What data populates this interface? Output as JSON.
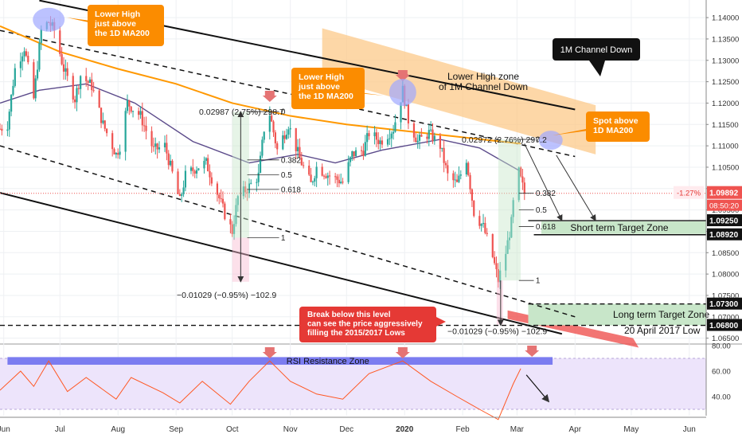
{
  "chart_data": [
    {
      "type": "candlestick",
      "title": "",
      "ylim": [
        1.064,
        1.143
      ],
      "x_tick_labels": [
        "Jun",
        "Jul",
        "Aug",
        "Sep",
        "Oct",
        "Nov",
        "Dec",
        "2020",
        "Feb",
        "Mar",
        "Apr",
        "May",
        "Jun"
      ],
      "y_tick_labels": [
        "1.14000",
        "1.13500",
        "1.13000",
        "1.12500",
        "1.12000",
        "1.11500",
        "1.11000",
        "1.10500",
        "1.10000",
        "1.09500",
        "1.09000",
        "1.08500",
        "1.08000",
        "1.07500",
        "1.07000",
        "1.06500"
      ],
      "y_ticks": [
        1.14,
        1.135,
        1.13,
        1.125,
        1.12,
        1.115,
        1.11,
        1.105,
        1.1,
        1.095,
        1.09,
        1.085,
        1.08,
        1.075,
        1.07,
        1.065
      ],
      "price_path": [
        {
          "x": "2019-05-30",
          "y": 1.114
        },
        {
          "x": "2019-06-03",
          "y": 1.115
        },
        {
          "x": "2019-06-07",
          "y": 1.128
        },
        {
          "x": "2019-06-12",
          "y": 1.133
        },
        {
          "x": "2019-06-17",
          "y": 1.121
        },
        {
          "x": "2019-06-21",
          "y": 1.137
        },
        {
          "x": "2019-06-25",
          "y": 1.139
        },
        {
          "x": "2019-06-28",
          "y": 1.137
        },
        {
          "x": "2019-07-03",
          "y": 1.128
        },
        {
          "x": "2019-07-09",
          "y": 1.121
        },
        {
          "x": "2019-07-12",
          "y": 1.1265
        },
        {
          "x": "2019-07-18",
          "y": 1.124
        },
        {
          "x": "2019-07-24",
          "y": 1.115
        },
        {
          "x": "2019-07-31",
          "y": 1.108
        },
        {
          "x": "2019-08-02",
          "y": 1.11
        },
        {
          "x": "2019-08-06",
          "y": 1.12
        },
        {
          "x": "2019-08-13",
          "y": 1.117
        },
        {
          "x": "2019-08-20",
          "y": 1.109
        },
        {
          "x": "2019-08-26",
          "y": 1.11
        },
        {
          "x": "2019-09-03",
          "y": 1.097
        },
        {
          "x": "2019-09-06",
          "y": 1.103
        },
        {
          "x": "2019-09-12",
          "y": 1.105
        },
        {
          "x": "2019-09-17",
          "y": 1.106
        },
        {
          "x": "2019-09-23",
          "y": 1.099
        },
        {
          "x": "2019-09-27",
          "y": 1.094
        },
        {
          "x": "2019-10-01",
          "y": 1.09
        },
        {
          "x": "2019-10-04",
          "y": 1.098
        },
        {
          "x": "2019-10-09",
          "y": 1.1
        },
        {
          "x": "2019-10-15",
          "y": 1.103
        },
        {
          "x": "2019-10-18",
          "y": 1.114
        },
        {
          "x": "2019-10-21",
          "y": 1.1175
        },
        {
          "x": "2019-10-25",
          "y": 1.109
        },
        {
          "x": "2019-10-31",
          "y": 1.115
        },
        {
          "x": "2019-11-06",
          "y": 1.107
        },
        {
          "x": "2019-11-12",
          "y": 1.101
        },
        {
          "x": "2019-11-15",
          "y": 1.105
        },
        {
          "x": "2019-11-22",
          "y": 1.103
        },
        {
          "x": "2019-11-29",
          "y": 1.1015
        },
        {
          "x": "2019-12-04",
          "y": 1.108
        },
        {
          "x": "2019-12-10",
          "y": 1.109
        },
        {
          "x": "2019-12-13",
          "y": 1.113
        },
        {
          "x": "2019-12-19",
          "y": 1.111
        },
        {
          "x": "2019-12-26",
          "y": 1.114
        },
        {
          "x": "2019-12-31",
          "y": 1.123
        },
        {
          "x": "2020-01-03",
          "y": 1.116
        },
        {
          "x": "2020-01-08",
          "y": 1.111
        },
        {
          "x": "2020-01-14",
          "y": 1.113
        },
        {
          "x": "2020-01-20",
          "y": 1.11
        },
        {
          "x": "2020-01-24",
          "y": 1.103
        },
        {
          "x": "2020-01-29",
          "y": 1.101
        },
        {
          "x": "2020-02-03",
          "y": 1.107
        },
        {
          "x": "2020-02-07",
          "y": 1.0945
        },
        {
          "x": "2020-02-12",
          "y": 1.091
        },
        {
          "x": "2020-02-17",
          "y": 1.084
        },
        {
          "x": "2020-02-20",
          "y": 1.0785
        },
        {
          "x": "2020-02-24",
          "y": 1.085
        },
        {
          "x": "2020-02-27",
          "y": 1.092
        },
        {
          "x": "2020-03-01",
          "y": 1.1055
        },
        {
          "x": "2020-03-03",
          "y": 1.102
        },
        {
          "x": "2020-03-05",
          "y": 1.0989
        }
      ],
      "moving_averages": [
        {
          "name": "1D MA200",
          "color": "#ff9800",
          "points": [
            {
              "x": "2019-05-30",
              "y": 1.138
            },
            {
              "x": "2019-07-01",
              "y": 1.132
            },
            {
              "x": "2019-08-01",
              "y": 1.128
            },
            {
              "x": "2019-09-01",
              "y": 1.1245
            },
            {
              "x": "2019-10-01",
              "y": 1.12
            },
            {
              "x": "2019-11-01",
              "y": 1.117
            },
            {
              "x": "2019-12-01",
              "y": 1.115
            },
            {
              "x": "2020-01-01",
              "y": 1.1135
            },
            {
              "x": "2020-02-01",
              "y": 1.112
            },
            {
              "x": "2020-03-03",
              "y": 1.1105
            }
          ]
        },
        {
          "name": "",
          "color": "#5b4a8a",
          "points": [
            {
              "x": "2019-05-30",
              "y": 1.12
            },
            {
              "x": "2019-06-20",
              "y": 1.123
            },
            {
              "x": "2019-07-15",
              "y": 1.1245
            },
            {
              "x": "2019-08-10",
              "y": 1.12
            },
            {
              "x": "2019-09-10",
              "y": 1.111
            },
            {
              "x": "2019-10-10",
              "y": 1.106
            },
            {
              "x": "2019-11-05",
              "y": 1.108
            },
            {
              "x": "2019-11-25",
              "y": 1.106
            },
            {
              "x": "2019-12-20",
              "y": 1.109
            },
            {
              "x": "2020-01-20",
              "y": 1.1115
            },
            {
              "x": "2020-02-10",
              "y": 1.1095
            },
            {
              "x": "2020-03-03",
              "y": 1.104
            }
          ]
        }
      ],
      "channel": {
        "name": "1M Channel Down",
        "upper": [
          {
            "x": "2019-06-20",
            "y": 1.144
          },
          {
            "x": "2020-04-01",
            "y": 1.1185
          }
        ],
        "mid_upper": [
          {
            "x": "2019-05-30",
            "y": 1.137
          },
          {
            "x": "2020-04-01",
            "y": 1.1075
          }
        ],
        "mid_lower": [
          {
            "x": "2019-05-30",
            "y": 1.11
          },
          {
            "x": "2020-04-01",
            "y": 1.07
          }
        ],
        "lower": [
          {
            "x": "2019-05-30",
            "y": 1.099
          },
          {
            "x": "2020-03-25",
            "y": 1.066
          }
        ]
      },
      "levels": [
        {
          "value": 1.0925,
          "label": "1.09250"
        },
        {
          "value": 1.0892,
          "label": "1.08920"
        },
        {
          "value": 1.073,
          "label": "1.07300"
        },
        {
          "value": 1.068,
          "label": "1.06800"
        }
      ],
      "current_price": {
        "value": 1.0989,
        "label": "1.09892",
        "change": "-1.27%",
        "countdown": "08:50:20"
      },
      "fib_labels": [
        "0",
        "0.382",
        "0.5",
        "0.618",
        "1"
      ],
      "annotations": [
        "Lower High\njust above\nthe 1D MA200",
        "Lower High\njust above\nthe 1D MA200",
        "1M Channel Down",
        "Lower High zone\nof 1M Channel Down",
        "Spot above\n1D MA200",
        "Short term Target Zone",
        "Long term Target Zone",
        "20 April 2017 Low",
        "Break below this level\ncan see the price aggressively\nfilling the 2015/2017 Lows",
        "0.02987 (2.75%) 298.7",
        "0.02972 (2.76%) 297.2",
        "−0.01029 (−0.95%) −102.9",
        "−0.01029 (−0.95%) −102.9"
      ]
    },
    {
      "type": "line",
      "title": "",
      "ylim": [
        25,
        80
      ],
      "y_tick_labels": [
        "80.00",
        "60.00",
        "40.00"
      ],
      "y_ticks": [
        80,
        60,
        40
      ],
      "resistance_zone": {
        "label": "RSI Resistance Zone",
        "from": 65,
        "to": 71
      },
      "series": [
        {
          "name": "",
          "color": "#ff5722",
          "points": [
            {
              "x": "2019-05-30",
              "y": 45
            },
            {
              "x": "2019-06-10",
              "y": 60
            },
            {
              "x": "2019-06-17",
              "y": 48
            },
            {
              "x": "2019-06-25",
              "y": 68
            },
            {
              "x": "2019-07-05",
              "y": 44
            },
            {
              "x": "2019-07-15",
              "y": 55
            },
            {
              "x": "2019-07-31",
              "y": 38
            },
            {
              "x": "2019-08-08",
              "y": 55
            },
            {
              "x": "2019-08-25",
              "y": 43
            },
            {
              "x": "2019-09-03",
              "y": 35
            },
            {
              "x": "2019-09-15",
              "y": 52
            },
            {
              "x": "2019-09-30",
              "y": 34
            },
            {
              "x": "2019-10-10",
              "y": 52
            },
            {
              "x": "2019-10-21",
              "y": 68
            },
            {
              "x": "2019-11-01",
              "y": 52
            },
            {
              "x": "2019-11-15",
              "y": 42
            },
            {
              "x": "2019-11-29",
              "y": 38
            },
            {
              "x": "2019-12-13",
              "y": 58
            },
            {
              "x": "2019-12-31",
              "y": 68
            },
            {
              "x": "2020-01-15",
              "y": 52
            },
            {
              "x": "2020-01-29",
              "y": 40
            },
            {
              "x": "2020-02-10",
              "y": 30
            },
            {
              "x": "2020-02-20",
              "y": 22
            },
            {
              "x": "2020-02-28",
              "y": 50
            },
            {
              "x": "2020-03-03",
              "y": 62
            }
          ]
        }
      ]
    }
  ]
}
